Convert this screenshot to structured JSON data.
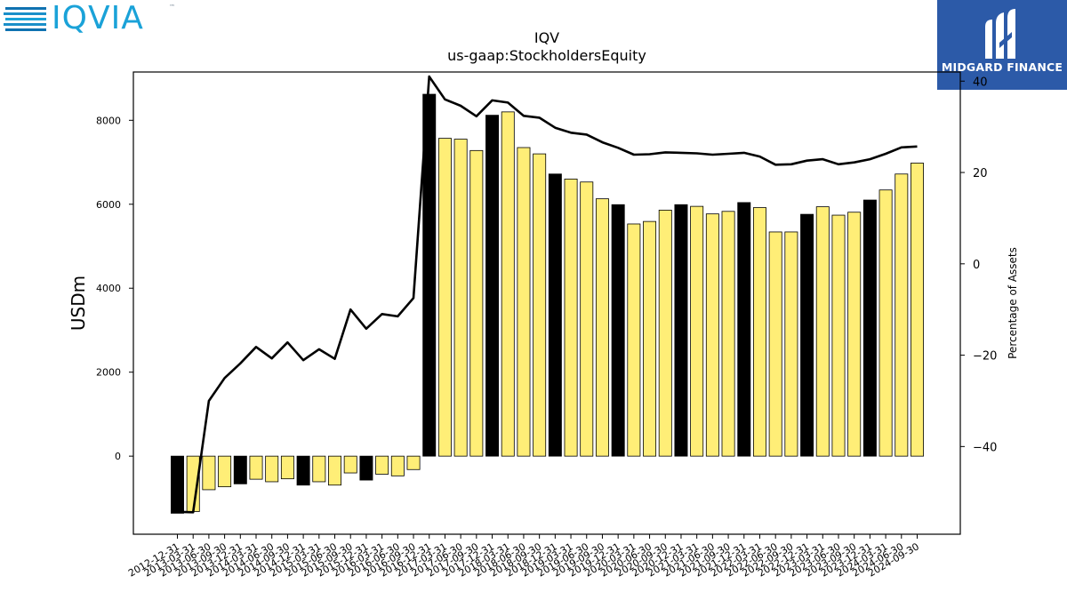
{
  "logos": {
    "left_wordmark": "IQVIA",
    "left_tm": "™",
    "right_brand": "MIDGARD FINANCE"
  },
  "chart_data": {
    "type": "bar",
    "title": "IQV",
    "subtitle": "us-gaap:StockholdersEquity",
    "ylabel": "USDm",
    "y2label": "Percentage of Assets",
    "ylim": [
      -1860,
      9150
    ],
    "y2lim": [
      -59.2,
      42
    ],
    "yticks": [
      0,
      2000,
      4000,
      6000,
      8000
    ],
    "y2ticks": [
      -40,
      -20,
      0,
      20,
      40
    ],
    "categories": [
      "2012-12-31",
      "2013-03-31",
      "2013-06-30",
      "2013-09-30",
      "2013-12-31",
      "2014-03-31",
      "2014-06-30",
      "2014-09-30",
      "2014-12-31",
      "2015-03-31",
      "2015-06-30",
      "2015-09-30",
      "2015-12-31",
      "2016-03-31",
      "2016-06-30",
      "2016-09-30",
      "2016-12-31",
      "2017-03-31",
      "2017-06-30",
      "2017-09-30",
      "2017-12-31",
      "2018-03-31",
      "2018-06-30",
      "2018-09-30",
      "2018-12-31",
      "2019-03-31",
      "2019-06-30",
      "2019-09-30",
      "2019-12-31",
      "2020-03-31",
      "2020-06-30",
      "2020-09-30",
      "2020-12-31",
      "2021-03-31",
      "2021-06-30",
      "2021-09-30",
      "2021-12-31",
      "2022-03-31",
      "2022-06-30",
      "2022-09-30",
      "2022-12-31",
      "2023-03-31",
      "2023-06-30",
      "2023-09-30",
      "2023-12-31",
      "2024-03-31",
      "2024-06-30",
      "2024-09-30"
    ],
    "series": [
      {
        "kind": "bar",
        "values": [
          -1360,
          -1320,
          -800,
          -730,
          -660,
          -550,
          -610,
          -540,
          -690,
          -610,
          -690,
          -400,
          -570,
          -430,
          -470,
          -320,
          8620,
          7570,
          7550,
          7280,
          8120,
          8200,
          7350,
          7200,
          6720,
          6600,
          6530,
          6130,
          5990,
          5530,
          5590,
          5860,
          5990,
          5950,
          5770,
          5830,
          6040,
          5920,
          5340,
          5340,
          5760,
          5940,
          5740,
          5810,
          6100,
          6340,
          6720,
          6980
        ],
        "year_end_color": "#000000",
        "quarter_color": "#ffee77"
      },
      {
        "kind": "line",
        "axis": "right",
        "color": "#000000",
        "values": [
          -54.3,
          -54.4,
          -30,
          -25,
          -21.8,
          -18.2,
          -20.7,
          -17.2,
          -21.1,
          -18.7,
          -20.8,
          -10,
          -14.2,
          -11,
          -11.5,
          -7.5,
          41,
          36,
          34.6,
          32.3,
          35.8,
          35.3,
          32.4,
          32,
          29.8,
          28.7,
          28.3,
          26.6,
          25.4,
          23.9,
          24,
          24.4,
          24.3,
          24.2,
          23.9,
          24.1,
          24.3,
          23.5,
          21.7,
          21.8,
          22.6,
          22.9,
          21.8,
          22.2,
          22.9,
          24.1,
          25.5,
          25.7
        ]
      }
    ]
  }
}
